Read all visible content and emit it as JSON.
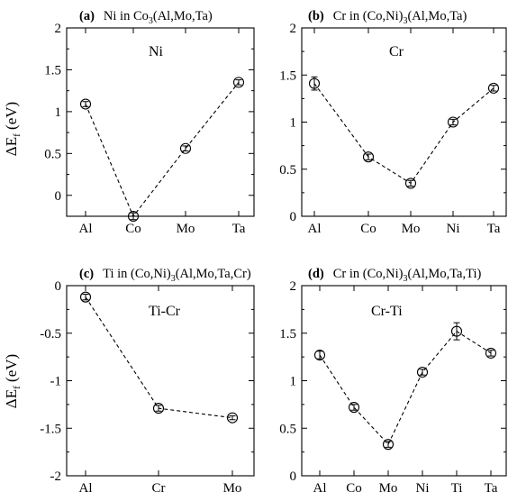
{
  "chart_data": [
    {
      "type": "line",
      "panel": "a",
      "title": "Ni in Co3(Al,Mo,Ta)",
      "title_parts": {
        "tag": "(a)",
        "pre": "Ni in Co",
        "sub": "3",
        "post": "(Al,Mo,Ta)"
      },
      "inset_label": "Ni",
      "ylabel": "ΔE",
      "ylabel_sub": "f",
      "ylabel_unit": " (eV)",
      "categories": [
        "Al",
        "Co",
        "Mo",
        "Ta"
      ],
      "values": [
        1.09,
        -0.25,
        0.56,
        1.35
      ],
      "errors": [
        0.03,
        0.04,
        0.03,
        0.03
      ],
      "ylim": [
        -0.25,
        2
      ],
      "yticks": [
        0,
        0.5,
        1,
        1.5,
        2
      ],
      "ytick_labels": [
        "0",
        "0.5",
        "1",
        "1.5",
        "2"
      ]
    },
    {
      "type": "line",
      "panel": "b",
      "title": "Cr in (Co,Ni)3(Al,Mo,Ta)",
      "title_parts": {
        "tag": "(b)",
        "pre": "Cr in (Co,Ni)",
        "sub": "3",
        "post": "(Al,Mo,Ta)"
      },
      "inset_label": "Cr",
      "categories": [
        "Al",
        "Co",
        "Mo",
        "Ni",
        "Ta"
      ],
      "values": [
        1.41,
        0.63,
        0.35,
        1.0,
        1.36
      ],
      "errors": [
        0.07,
        0.03,
        0.03,
        0.03,
        0.03
      ],
      "ylim": [
        0,
        2
      ],
      "yticks": [
        0,
        0.5,
        1,
        1.5,
        2
      ],
      "ytick_labels": [
        "0",
        "0.5",
        "1",
        "1.5",
        "2"
      ]
    },
    {
      "type": "line",
      "panel": "c",
      "title": "Ti in (Co,Ni)3(Al,Mo,Ta,Cr)",
      "title_parts": {
        "tag": "(c)",
        "pre": "Ti in (Co,Ni)",
        "sub": "3",
        "post": "(Al,Mo,Ta,Cr)"
      },
      "inset_label": "Ti-Cr",
      "ylabel": "ΔE",
      "ylabel_sub": "f",
      "ylabel_unit": " (eV)",
      "categories": [
        "Al",
        "Cr",
        "Mo"
      ],
      "values": [
        -0.12,
        -1.29,
        -1.39
      ],
      "errors": [
        0.03,
        0.03,
        0.02
      ],
      "ylim": [
        -2,
        0
      ],
      "yticks": [
        -2,
        -1.5,
        -1,
        -0.5,
        0
      ],
      "ytick_labels": [
        "-2",
        "-1.5",
        "-1",
        "-0.5",
        "0"
      ]
    },
    {
      "type": "line",
      "panel": "d",
      "title": "Cr in (Co,Ni)3(Al,Mo,Ta,Ti)",
      "title_parts": {
        "tag": "(d)",
        "pre": "Cr in (Co,Ni)",
        "sub": "3",
        "post": "(Al,Mo,Ta,Ti)"
      },
      "inset_label": "Cr-Ti",
      "categories": [
        "Al",
        "Co",
        "Mo",
        "Ni",
        "Ti",
        "Ta"
      ],
      "values": [
        1.27,
        0.72,
        0.33,
        1.09,
        1.52,
        1.29
      ],
      "errors": [
        0.04,
        0.03,
        0.03,
        0.03,
        0.09,
        0.03
      ],
      "ylim": [
        0,
        2
      ],
      "yticks": [
        0,
        0.5,
        1,
        1.5,
        2
      ],
      "ytick_labels": [
        "0",
        "0.5",
        "1",
        "1.5",
        "2"
      ]
    }
  ]
}
